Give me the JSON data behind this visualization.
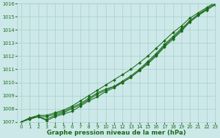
{
  "x": [
    0,
    1,
    2,
    3,
    4,
    5,
    6,
    7,
    8,
    9,
    10,
    11,
    12,
    13,
    14,
    15,
    16,
    17,
    18,
    19,
    20,
    21,
    22,
    23
  ],
  "line1": [
    1007.0,
    1007.3,
    1007.4,
    1007.4,
    1007.6,
    1007.8,
    1008.1,
    1008.4,
    1008.8,
    1009.2,
    1009.5,
    1009.7,
    1010.0,
    1010.4,
    1010.9,
    1011.4,
    1012.0,
    1012.7,
    1013.3,
    1013.9,
    1014.6,
    1015.1,
    1015.5,
    1015.9
  ],
  "line2": [
    1007.0,
    1007.3,
    1007.4,
    1007.2,
    1007.5,
    1007.7,
    1008.0,
    1008.3,
    1008.7,
    1009.1,
    1009.4,
    1009.7,
    1010.1,
    1010.5,
    1011.0,
    1011.6,
    1012.2,
    1012.9,
    1013.5,
    1014.1,
    1014.7,
    1015.2,
    1015.6,
    1016.0
  ],
  "line3": [
    1007.0,
    1007.2,
    1007.4,
    1007.1,
    1007.4,
    1007.6,
    1007.8,
    1008.2,
    1008.6,
    1008.9,
    1009.3,
    1009.6,
    1010.0,
    1010.4,
    1010.9,
    1011.5,
    1012.1,
    1012.8,
    1013.4,
    1014.0,
    1014.6,
    1015.1,
    1015.6,
    1016.0
  ],
  "line4_straight_start": [
    1007.0,
    1007.3,
    1007.5,
    1007.5,
    1007.7,
    1007.9,
    1008.2,
    1008.6,
    1009.0,
    1009.4,
    1009.8,
    1010.2,
    1010.6,
    1011.0,
    1011.5,
    1012.0,
    1012.6,
    1013.2,
    1013.8,
    1014.3,
    1014.9,
    1015.3,
    1015.7,
    1016.1
  ],
  "ylim": [
    1007,
    1016
  ],
  "xlim": [
    -0.5,
    23
  ],
  "yticks": [
    1007,
    1008,
    1009,
    1010,
    1011,
    1012,
    1013,
    1014,
    1015,
    1016
  ],
  "xticks": [
    0,
    1,
    2,
    3,
    4,
    5,
    6,
    7,
    8,
    9,
    10,
    11,
    12,
    13,
    14,
    15,
    16,
    17,
    18,
    19,
    20,
    21,
    22,
    23
  ],
  "line_color": "#1a6b1a",
  "marker_color": "#1a6b1a",
  "bg_color": "#cce8e8",
  "grid_color": "#aacccc",
  "xlabel": "Graphe pression niveau de la mer (hPa)",
  "marker": "D",
  "markersize": 2.0,
  "linewidth": 0.8,
  "xlabel_fontsize": 6.5,
  "tick_fontsize": 5.0
}
